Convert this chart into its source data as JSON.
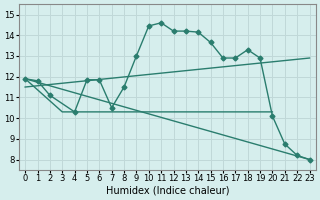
{
  "xlabel": "Humidex (Indice chaleur)",
  "background_color": "#d6eeed",
  "grid_color": "#c0d8d8",
  "line_color": "#2a7d6e",
  "xlim": [
    -0.5,
    23.5
  ],
  "ylim": [
    7.5,
    15.5
  ],
  "xticks": [
    0,
    1,
    2,
    3,
    4,
    5,
    6,
    7,
    8,
    9,
    10,
    11,
    12,
    13,
    14,
    15,
    16,
    17,
    18,
    19,
    20,
    21,
    22,
    23
  ],
  "yticks": [
    8,
    9,
    10,
    11,
    12,
    13,
    14,
    15
  ],
  "series": [
    {
      "x": [
        0,
        1,
        2,
        4,
        5,
        6,
        7,
        8,
        9,
        10,
        11,
        12,
        13,
        14,
        15,
        16,
        17,
        18,
        19,
        20,
        21,
        22,
        23
      ],
      "y": [
        11.9,
        11.8,
        11.1,
        10.3,
        11.85,
        11.85,
        10.5,
        11.5,
        13.0,
        14.45,
        14.6,
        14.2,
        14.2,
        14.15,
        13.65,
        12.9,
        12.9,
        13.3,
        12.9,
        10.1,
        8.75,
        8.2,
        8.0
      ],
      "marker": "D",
      "markersize": 2.5,
      "linewidth": 1.0
    },
    {
      "x": [
        0,
        3,
        7,
        20
      ],
      "y": [
        11.9,
        10.3,
        10.3,
        10.3
      ],
      "marker": "none",
      "markersize": 0,
      "linewidth": 1.0
    },
    {
      "x": [
        0,
        23
      ],
      "y": [
        11.5,
        12.9
      ],
      "marker": "none",
      "markersize": 0,
      "linewidth": 1.0
    },
    {
      "x": [
        0,
        23
      ],
      "y": [
        11.9,
        8.0
      ],
      "marker": "none",
      "markersize": 0,
      "linewidth": 1.0
    }
  ]
}
